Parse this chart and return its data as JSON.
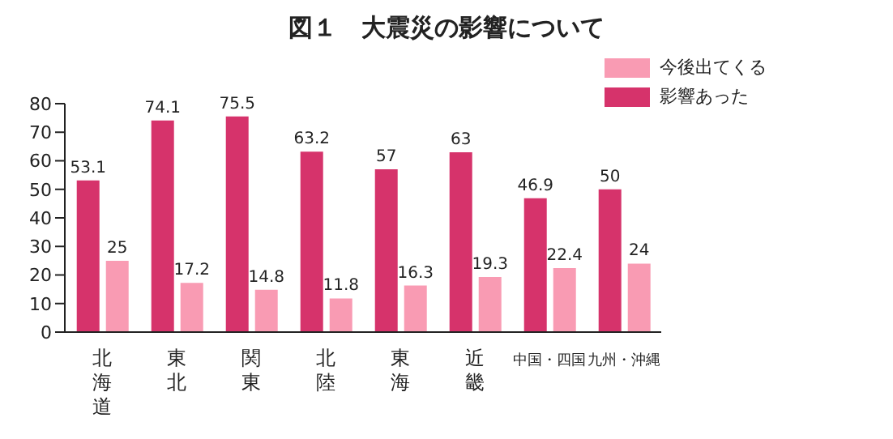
{
  "chart_data": {
    "type": "bar",
    "title": "図１　大震災の影響について",
    "categories": [
      "北海道",
      "東北",
      "関東",
      "北陸",
      "東海",
      "近畿",
      "中国・四国",
      "九州・沖縄"
    ],
    "series": [
      {
        "name": "影響あった",
        "color": "#d6336b",
        "values": [
          53.1,
          74.1,
          75.5,
          63.2,
          57,
          63,
          46.9,
          50
        ]
      },
      {
        "name": "今後出てくる",
        "color": "#f99bb3",
        "values": [
          25,
          17.2,
          14.8,
          11.8,
          16.3,
          19.3,
          22.4,
          24
        ]
      }
    ],
    "ylim": [
      0,
      80
    ],
    "yticks": [
      0,
      10,
      20,
      30,
      40,
      50,
      60,
      70,
      80
    ],
    "grid": false,
    "legend": "top right",
    "data_labels": true
  }
}
